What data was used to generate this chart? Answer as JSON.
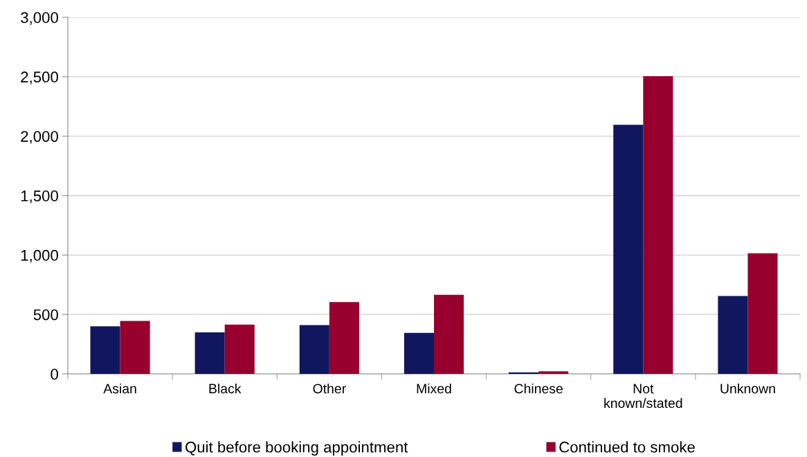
{
  "chart_data": {
    "type": "bar",
    "categories": [
      "Asian",
      "Black",
      "Other",
      "Mixed",
      "Chinese",
      "Not\nknown/stated",
      "Unknown"
    ],
    "series": [
      {
        "name": "Quit before booking appointment",
        "color": "#10175e",
        "values": [
          400,
          350,
          410,
          345,
          13,
          2095,
          655
        ]
      },
      {
        "name": "Continued to smoke",
        "color": "#97002e",
        "values": [
          445,
          415,
          605,
          665,
          22,
          2505,
          1015
        ]
      }
    ],
    "ylim": [
      0,
      3000
    ],
    "yticks": [
      {
        "value": 0,
        "label": "0"
      },
      {
        "value": 500,
        "label": "500"
      },
      {
        "value": 1000,
        "label": "1,000"
      },
      {
        "value": 1500,
        "label": "1,500"
      },
      {
        "value": 2000,
        "label": "2,000"
      },
      {
        "value": 2500,
        "label": "2,500"
      },
      {
        "value": 3000,
        "label": "3,000"
      }
    ],
    "grid": "y",
    "legend": "bottom"
  }
}
